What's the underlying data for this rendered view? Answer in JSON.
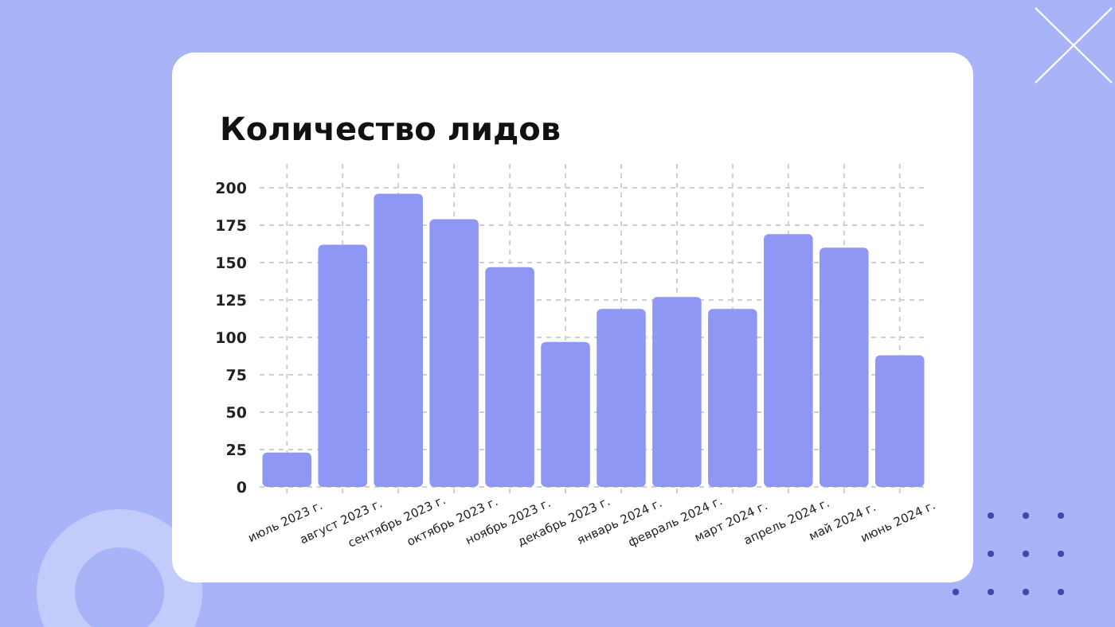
{
  "chart_data": {
    "type": "bar",
    "title": "Количество лидов",
    "categories": [
      "июль 2023 г.",
      "август 2023 г.",
      "сентябрь 2023 г.",
      "октябрь 2023 г.",
      "ноябрь 2023 г.",
      "декабрь 2023 г.",
      "январь 2024 г.",
      "февраль 2024 г.",
      "март 2024 г.",
      "апрель 2024 г.",
      "май 2024 г.",
      "июнь 2024 г."
    ],
    "values": [
      23,
      162,
      196,
      179,
      147,
      97,
      119,
      127,
      119,
      169,
      160,
      88
    ],
    "color": "#8e98f4",
    "ylim": [
      0,
      200
    ],
    "yticks": [
      0,
      25,
      50,
      75,
      100,
      125,
      150,
      175,
      200
    ],
    "grid": true
  }
}
